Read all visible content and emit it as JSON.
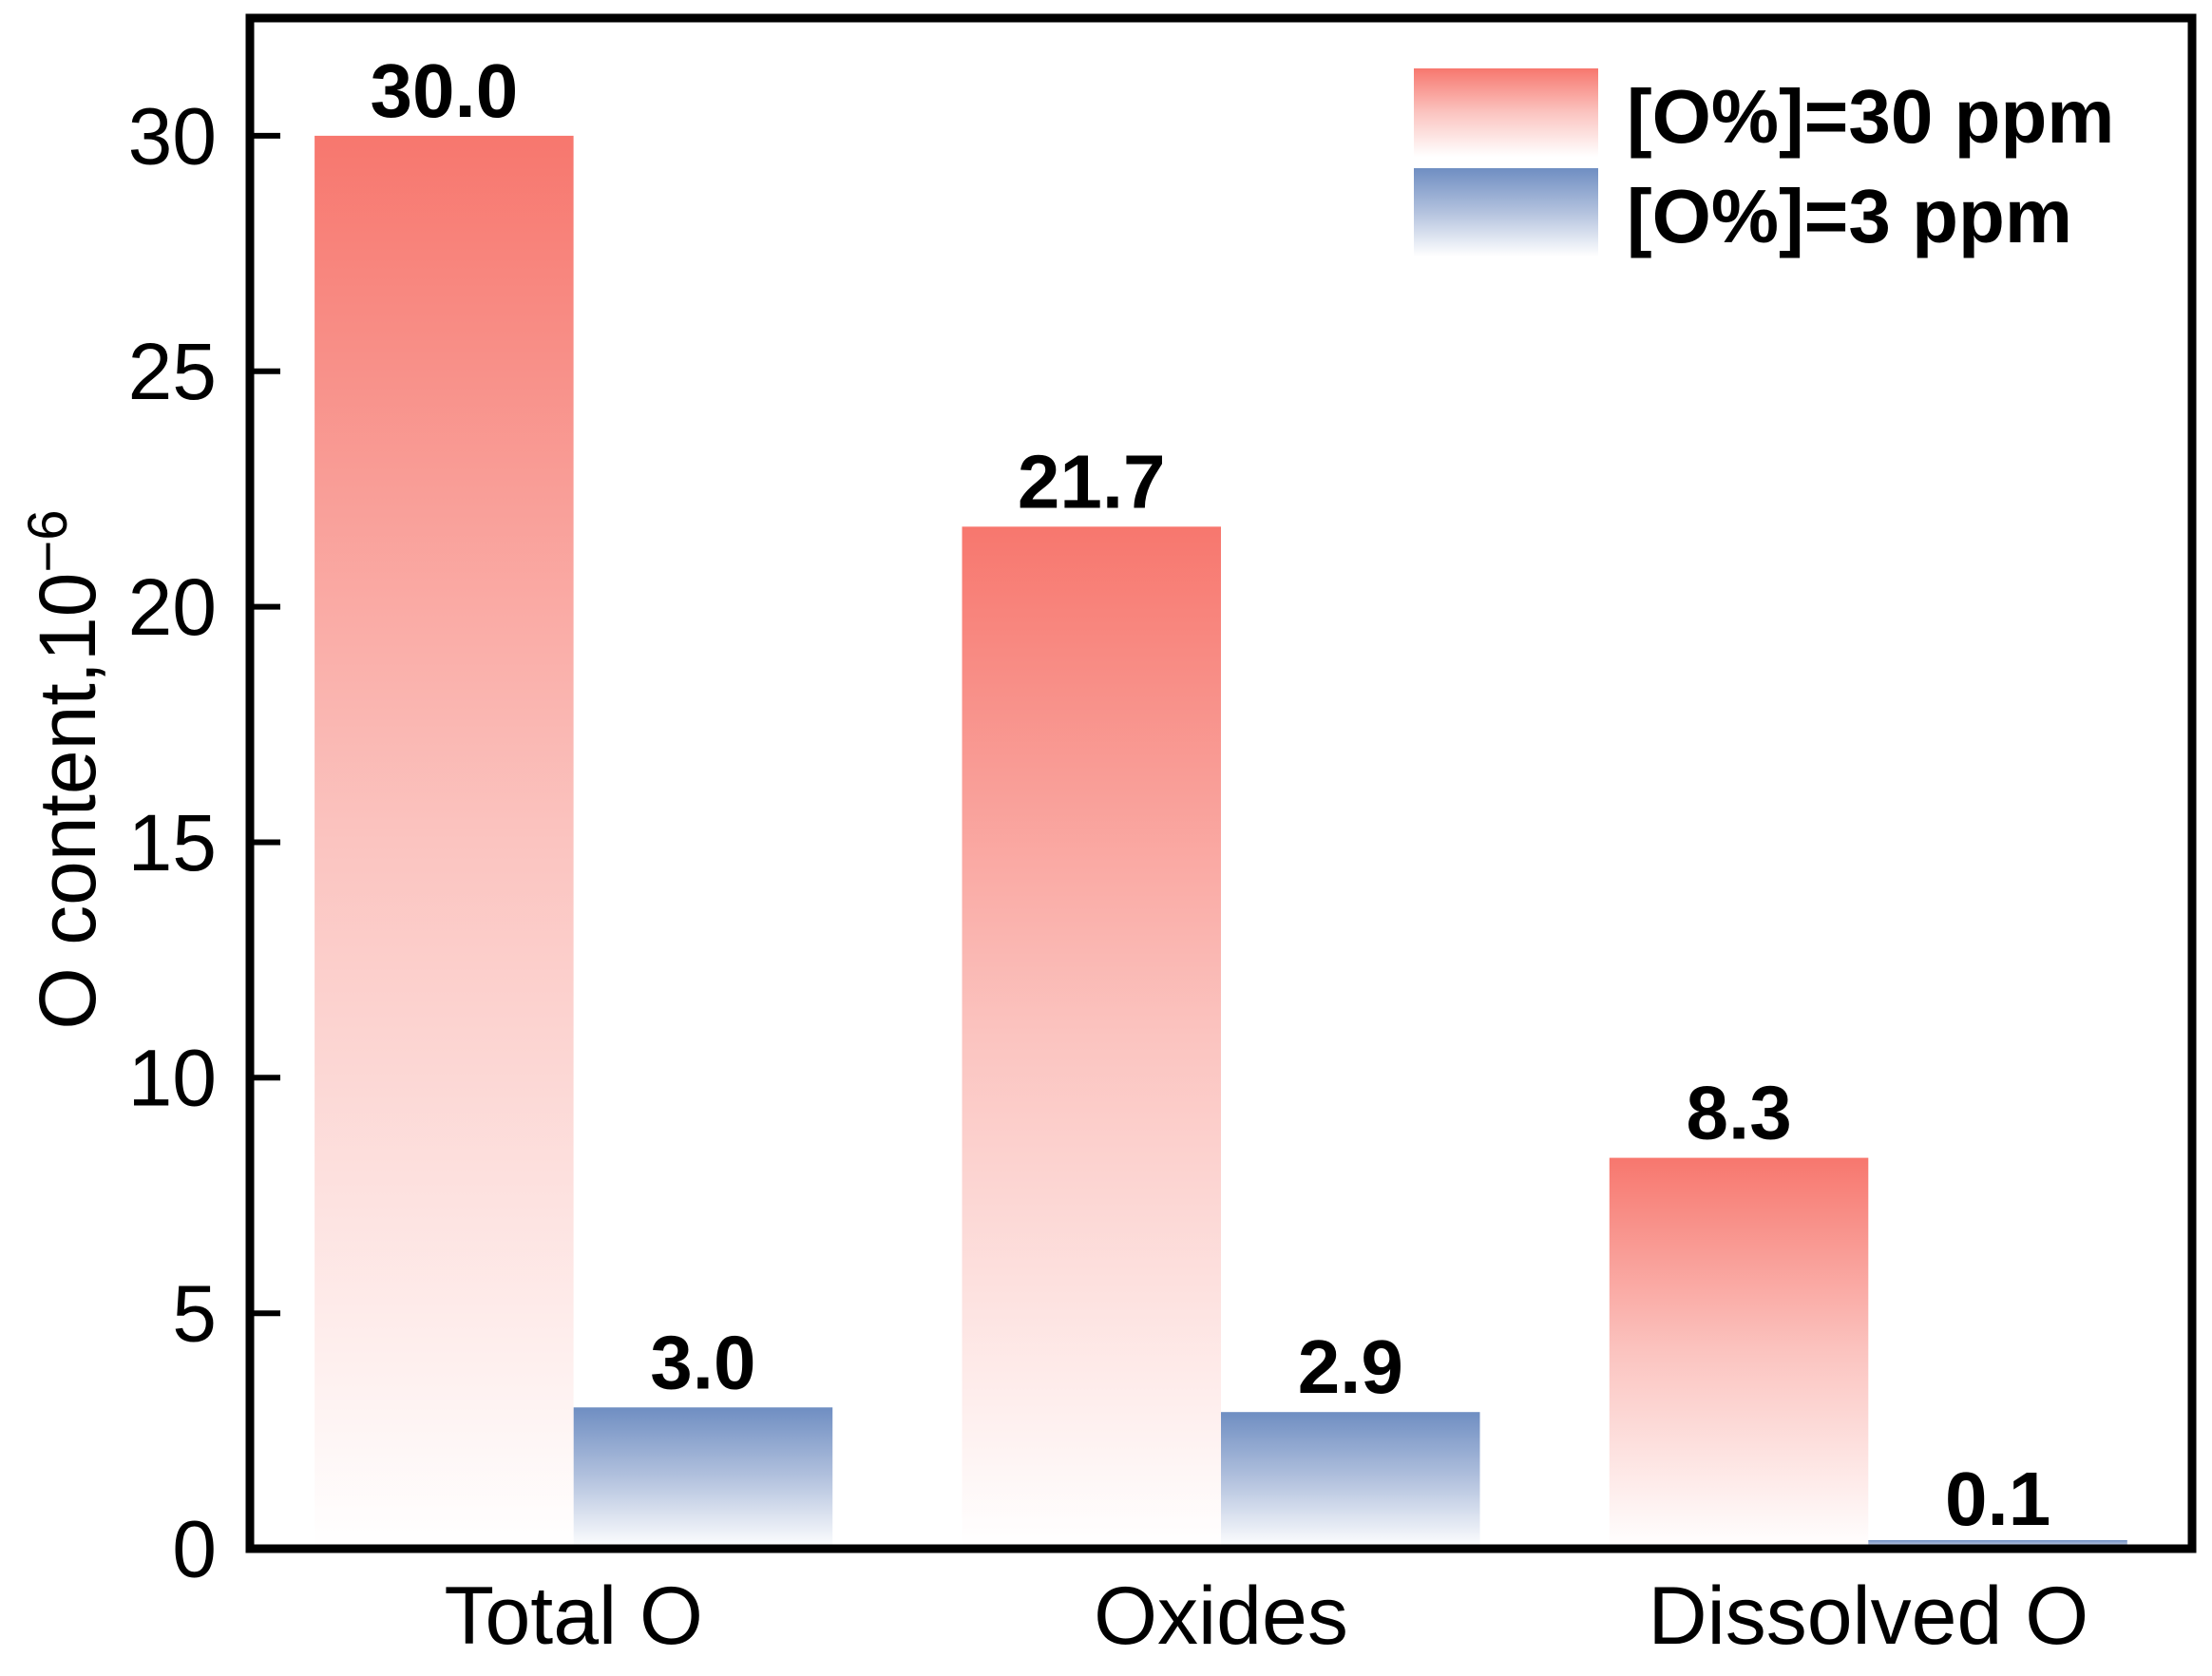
{
  "figure": {
    "background": "#FFFFFF",
    "frame_color": "#000000",
    "text_color": "#000000"
  },
  "chart_data": {
    "type": "bar",
    "title": "",
    "categories": [
      "Total O",
      "Oxides",
      "Dissolved O"
    ],
    "series": [
      {
        "name": "[O%]=30 ppm",
        "color": "#F7776E",
        "fade_mid": "#FBC4C0",
        "values": [
          30.0,
          21.7,
          8.3
        ],
        "value_labels": [
          "30.0",
          "21.7",
          "8.3"
        ]
      },
      {
        "name": "[O%]=3 ppm",
        "color": "#6F8EC2",
        "fade_mid": "#B3C2DE",
        "values": [
          3.0,
          2.9,
          0.1
        ],
        "value_labels": [
          "3.0",
          "2.9",
          "0.1"
        ]
      }
    ],
    "fade_to": "#FFFFFF",
    "bar_gradient_direction": "top-to-bottom",
    "xlabel": "",
    "ylabel_main": "O content,10",
    "ylabel_superscript": "−6",
    "yticks": [
      0,
      5,
      10,
      15,
      20,
      25,
      30
    ],
    "ytick_labels": [
      "0",
      "5",
      "10",
      "15",
      "20",
      "25",
      "30"
    ],
    "ylim": [
      0,
      32.5
    ],
    "grid": false,
    "legend_position": "upper-right"
  }
}
